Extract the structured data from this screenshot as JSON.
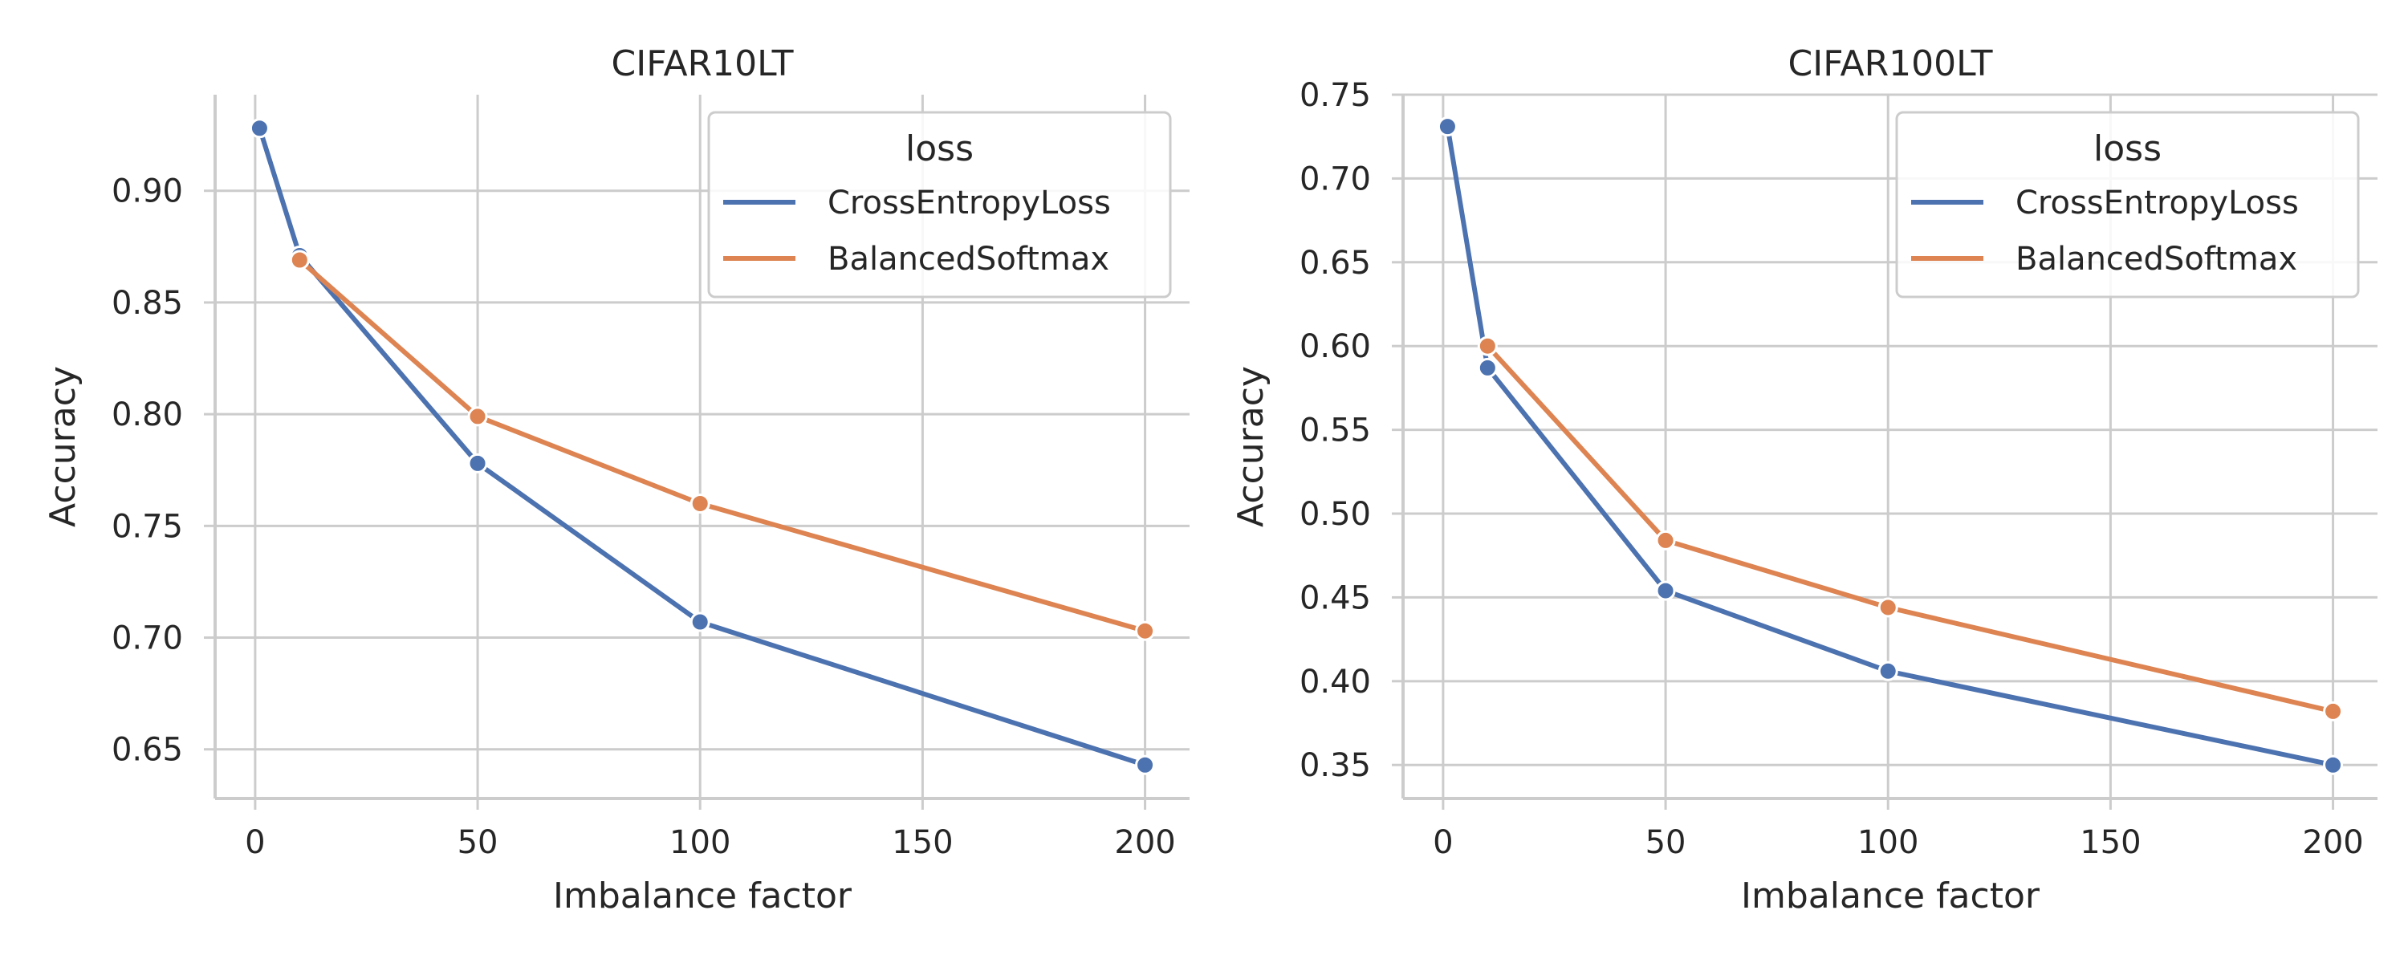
{
  "chart_data": [
    {
      "type": "line",
      "title": "CIFAR10LT",
      "xlabel": "Imbalance factor",
      "ylabel": "Accuracy",
      "xlim": [
        -9,
        210
      ],
      "ylim": [
        0.628,
        0.943
      ],
      "xticks": [
        0,
        50,
        100,
        150,
        200
      ],
      "xtick_labels": [
        "0",
        "50",
        "100",
        "150",
        "200"
      ],
      "yticks": [
        0.65,
        0.7,
        0.75,
        0.8,
        0.85,
        0.9
      ],
      "ytick_labels": [
        "0.65",
        "0.70",
        "0.75",
        "0.80",
        "0.85",
        "0.90"
      ],
      "grid": true,
      "legend": {
        "title": "loss",
        "position": "top-right"
      },
      "series": [
        {
          "name": "CrossEntropyLoss",
          "color": "#4c72b0",
          "x": [
            1,
            10,
            50,
            100,
            200
          ],
          "y": [
            0.928,
            0.871,
            0.778,
            0.707,
            0.643
          ]
        },
        {
          "name": "BalancedSoftmax",
          "color": "#dd8452",
          "x": [
            10,
            50,
            100,
            200
          ],
          "y": [
            0.869,
            0.799,
            0.76,
            0.703
          ]
        }
      ]
    },
    {
      "type": "line",
      "title": "CIFAR100LT",
      "xlabel": "Imbalance factor",
      "ylabel": "Accuracy",
      "xlim": [
        -9,
        210
      ],
      "ylim": [
        0.33,
        0.75
      ],
      "xticks": [
        0,
        50,
        100,
        150,
        200
      ],
      "xtick_labels": [
        "0",
        "50",
        "100",
        "150",
        "200"
      ],
      "yticks": [
        0.35,
        0.4,
        0.45,
        0.5,
        0.55,
        0.6,
        0.65,
        0.7,
        0.75
      ],
      "ytick_labels": [
        "0.35",
        "0.40",
        "0.45",
        "0.50",
        "0.55",
        "0.60",
        "0.65",
        "0.70",
        "0.75"
      ],
      "grid": true,
      "legend": {
        "title": "loss",
        "position": "top-right"
      },
      "series": [
        {
          "name": "CrossEntropyLoss",
          "color": "#4c72b0",
          "x": [
            1,
            10,
            50,
            100,
            200
          ],
          "y": [
            0.731,
            0.587,
            0.454,
            0.406,
            0.35
          ]
        },
        {
          "name": "BalancedSoftmax",
          "color": "#dd8452",
          "x": [
            10,
            50,
            100,
            200
          ],
          "y": [
            0.6,
            0.484,
            0.444,
            0.382
          ]
        }
      ]
    }
  ]
}
